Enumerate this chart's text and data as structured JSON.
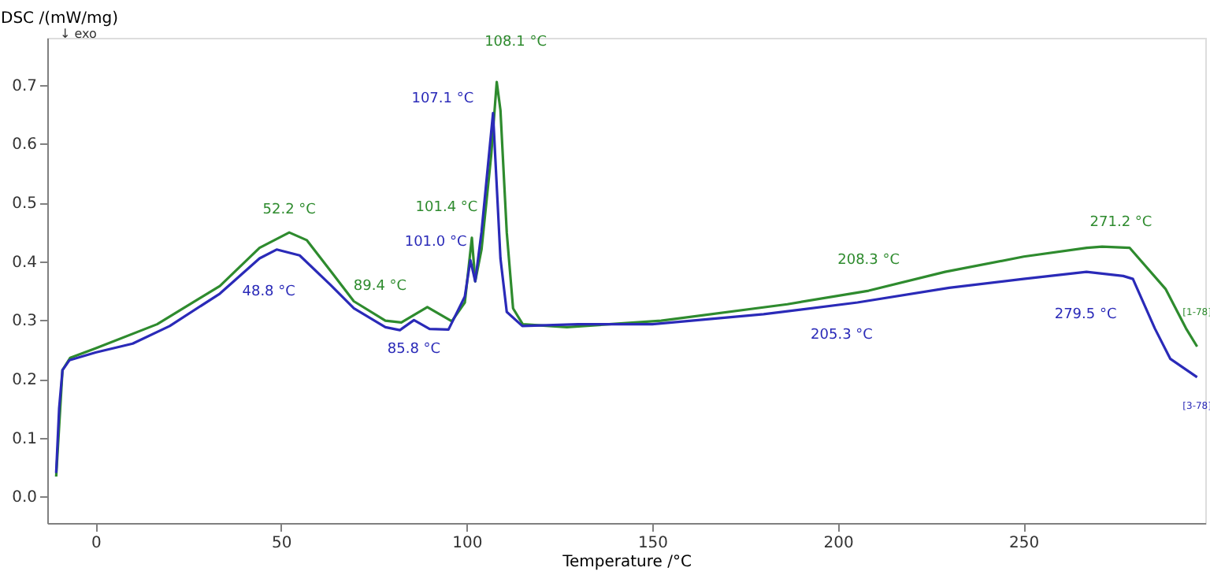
{
  "chart_data": {
    "type": "line",
    "xlabel": "Temperature /°C",
    "ylabel": "DSC /(mW/mg)",
    "xlim": [
      -13,
      299
    ],
    "ylim": [
      -0.045,
      0.78
    ],
    "xticks": [
      0,
      50,
      100,
      150,
      200,
      250
    ],
    "yticks": [
      {
        "value": 0,
        "label": "0.0"
      },
      {
        "value": 0.1,
        "label": "0.1"
      },
      {
        "value": 0.2,
        "label": "0.2"
      },
      {
        "value": 0.3,
        "label": "0.3"
      },
      {
        "value": 0.4,
        "label": "0.4"
      },
      {
        "value": 0.5,
        "label": "0.5"
      },
      {
        "value": 0.6,
        "label": "0.6"
      },
      {
        "value": 0.7,
        "label": "0.7"
      }
    ],
    "grid": false,
    "legend": false,
    "marker": "none",
    "line_style": "solid",
    "series": [
      {
        "name": "[1-78]",
        "color": "#2e8b2e",
        "x": [
          -10.6,
          -8.9,
          -6.8,
          0,
          16.6,
          33.5,
          44.2,
          52.2,
          56.9,
          63.3,
          69.6,
          78.1,
          82.4,
          89.4,
          96,
          99.5,
          101.4,
          102.3,
          104,
          106.6,
          108.1,
          109.1,
          110.8,
          112.5,
          115.1,
          127,
          152.4,
          186.4,
          208.3,
          228.9,
          250.1,
          267.1,
          271.2,
          278.6,
          288.3,
          293.8,
          296.8
        ],
        "values": [
          0.034,
          0.215,
          0.236,
          0.252,
          0.293,
          0.358,
          0.423,
          0.449,
          0.436,
          0.384,
          0.332,
          0.299,
          0.296,
          0.322,
          0.298,
          0.33,
          0.44,
          0.366,
          0.42,
          0.58,
          0.705,
          0.657,
          0.449,
          0.32,
          0.293,
          0.288,
          0.299,
          0.327,
          0.35,
          0.382,
          0.408,
          0.423,
          0.425,
          0.423,
          0.353,
          0.286,
          0.255
        ]
      },
      {
        "name": "[3-78]",
        "color": "#2a2ab8",
        "x": [
          -10.6,
          -9.8,
          -8.9,
          -7,
          0,
          10,
          20,
          33.5,
          44.2,
          48.8,
          55,
          63.3,
          69.6,
          78.1,
          82,
          85.8,
          90,
          95.1,
          99.5,
          101.0,
          102.3,
          104,
          107.1,
          109.1,
          110.8,
          115,
          130,
          150,
          180,
          205.3,
          230,
          250,
          267,
          276.9,
          279.5,
          285.4,
          289.6,
          296.8
        ],
        "values": [
          0.04,
          0.15,
          0.215,
          0.232,
          0.245,
          0.26,
          0.29,
          0.345,
          0.405,
          0.42,
          0.41,
          0.36,
          0.32,
          0.288,
          0.283,
          0.3,
          0.285,
          0.284,
          0.34,
          0.402,
          0.366,
          0.45,
          0.652,
          0.405,
          0.314,
          0.29,
          0.293,
          0.293,
          0.31,
          0.33,
          0.355,
          0.37,
          0.382,
          0.375,
          0.37,
          0.286,
          0.234,
          0.203
        ]
      }
    ],
    "annotations": [
      "↓ exo",
      {
        "text": "52.2 °C",
        "x": 52.2,
        "y": 0.449
      },
      {
        "text": "48.8 °C",
        "x": 48.8,
        "y": 0.42
      },
      {
        "text": "89.4 °C",
        "x": 89.4,
        "y": 0.322
      },
      {
        "text": "85.8 °C",
        "x": 85.8,
        "y": 0.3
      },
      {
        "text": "101.4 °C",
        "x": 101.4,
        "y": 0.44
      },
      {
        "text": "101.0 °C",
        "x": 101.0,
        "y": 0.402
      },
      {
        "text": "107.1 °C",
        "x": 107.1,
        "y": 0.652
      },
      {
        "text": "108.1 °C",
        "x": 108.1,
        "y": 0.705
      },
      {
        "text": "208.3 °C",
        "x": 208.3,
        "y": 0.35
      },
      {
        "text": "205.3 °C",
        "x": 205.3,
        "y": 0.33
      },
      {
        "text": "271.2 °C",
        "x": 271.2,
        "y": 0.425
      },
      {
        "text": "279.5 °C",
        "x": 279.5,
        "y": 0.37
      }
    ]
  }
}
